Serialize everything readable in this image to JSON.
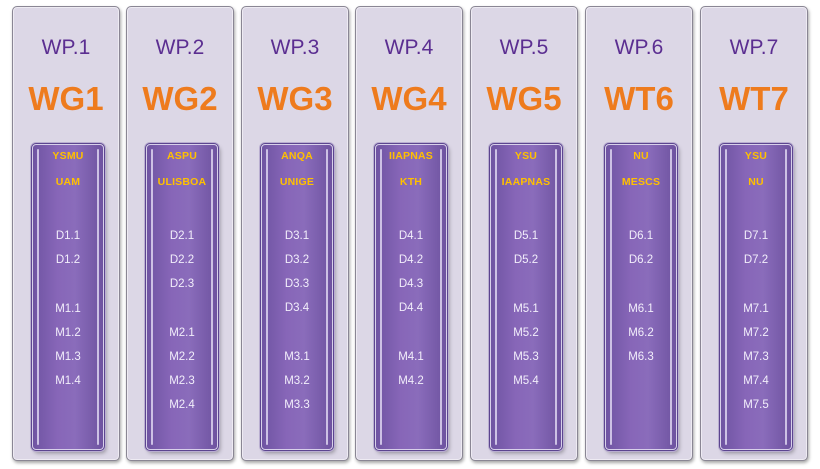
{
  "columns": [
    {
      "wp": "WP.1",
      "wg": "WG1",
      "institutions": [
        "YSMU",
        "UAM"
      ],
      "deliverables": [
        "D1.1",
        "D1.2",
        ""
      ],
      "milestones": [
        "M1.1",
        "M1.2",
        "M1.3",
        "M1.4",
        ""
      ],
      "milestones_offset": 0
    },
    {
      "wp": "WP.2",
      "wg": "WG2",
      "institutions": [
        "ASPU",
        "ULISBOA"
      ],
      "deliverables": [
        "D2.1",
        "D2.2",
        "D2.3"
      ],
      "milestones": [
        "M2.1",
        "M2.2",
        "M2.3",
        "M2.4"
      ],
      "milestones_offset": 1
    },
    {
      "wp": "WP.3",
      "wg": "WG3",
      "institutions": [
        "ANQA",
        "UNIGE"
      ],
      "deliverables": [
        "D3.1",
        "D3.2",
        "D3.3",
        "D3.4"
      ],
      "milestones": [
        "M3.1",
        "M3.2",
        "M3.3"
      ],
      "milestones_offset": 2
    },
    {
      "wp": "WP.4",
      "wg": "WG4",
      "institutions": [
        "IIAPNAS",
        "KTH"
      ],
      "deliverables": [
        "D4.1",
        "D4.2",
        "D4.3",
        "D4.4"
      ],
      "milestones": [
        "M4.1",
        "M4.2"
      ],
      "milestones_offset": 2
    },
    {
      "wp": "WP.5",
      "wg": "WG5",
      "institutions": [
        "YSU",
        "IAAPNAS"
      ],
      "deliverables": [
        "D5.1",
        "D5.2"
      ],
      "milestones": [
        "M5.1",
        "M5.2",
        "M5.3",
        "M5.4"
      ],
      "milestones_offset": 0
    },
    {
      "wp": "WP.6",
      "wg": "WT6",
      "institutions": [
        "NU",
        "MESCS"
      ],
      "deliverables": [
        "D6.1",
        "D6.2"
      ],
      "milestones": [
        "M6.1",
        "M6.2",
        "M6.3"
      ],
      "milestones_offset": 0
    },
    {
      "wp": "WP.7",
      "wg": "WT7",
      "institutions": [
        "YSU",
        "NU"
      ],
      "deliverables": [
        "D7.1",
        "D7.2"
      ],
      "milestones": [
        "M7.1",
        "M7.2",
        "M7.3",
        "M7.4",
        "M7.5"
      ],
      "milestones_offset": 0
    }
  ],
  "colors": {
    "wp_text": "#5b2e91",
    "wg_text": "#ee7b1d",
    "institution_text": "#ffc000",
    "card_fill": "#8766b8",
    "column_fill": "#dcd7e6"
  }
}
